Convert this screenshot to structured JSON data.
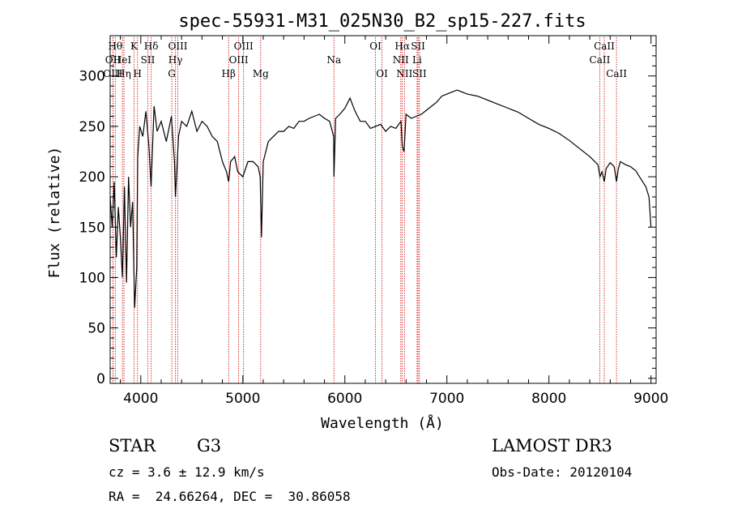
{
  "chart_data": {
    "type": "line",
    "title": "spec-55931-M31_025N30_B2_sp15-227.fits",
    "xlabel": "Wavelength (Å)",
    "ylabel": "Flux (relative)",
    "xlim": [
      3700,
      9050
    ],
    "ylim": [
      -5,
      340
    ],
    "xticks": [
      4000,
      5000,
      6000,
      7000,
      8000,
      9000
    ],
    "yticks": [
      0,
      50,
      100,
      150,
      200,
      250,
      300
    ],
    "series": [
      {
        "x": [
          3700,
          3720,
          3740,
          3760,
          3780,
          3800,
          3820,
          3840,
          3860,
          3880,
          3900,
          3920,
          3940,
          3960,
          3970,
          3990,
          4020,
          4050,
          4080,
          4101,
          4130,
          4160,
          4200,
          4250,
          4300,
          4330,
          4340,
          4370,
          4400,
          4450,
          4500,
          4550,
          4600,
          4650,
          4700,
          4750,
          4800,
          4840,
          4861,
          4880,
          4920,
          4950,
          5000,
          5050,
          5100,
          5150,
          5170,
          5183,
          5200,
          5250,
          5300,
          5350,
          5400,
          5450,
          5500,
          5550,
          5600,
          5650,
          5700,
          5750,
          5800,
          5850,
          5890,
          5893,
          5910,
          5950,
          6000,
          6050,
          6100,
          6150,
          6200,
          6250,
          6300,
          6350,
          6400,
          6450,
          6500,
          6550,
          6563,
          6580,
          6600,
          6650,
          6700,
          6750,
          6800,
          6850,
          6900,
          6950,
          7000,
          7050,
          7100,
          7150,
          7200,
          7300,
          7400,
          7500,
          7600,
          7700,
          7800,
          7900,
          8000,
          8100,
          8200,
          8300,
          8400,
          8480,
          8500,
          8520,
          8542,
          8560,
          8600,
          8640,
          8662,
          8680,
          8700,
          8750,
          8800,
          8850,
          8900,
          8950,
          8980,
          9000
        ],
        "y": [
          180,
          150,
          195,
          120,
          170,
          140,
          100,
          190,
          95,
          200,
          150,
          175,
          70,
          110,
          220,
          250,
          240,
          265,
          230,
          190,
          270,
          245,
          255,
          235,
          260,
          215,
          180,
          240,
          255,
          250,
          265,
          245,
          255,
          250,
          240,
          235,
          215,
          205,
          195,
          215,
          220,
          205,
          200,
          215,
          215,
          210,
          200,
          140,
          215,
          235,
          240,
          245,
          245,
          250,
          248,
          255,
          255,
          258,
          260,
          262,
          258,
          255,
          240,
          200,
          258,
          262,
          268,
          278,
          265,
          255,
          255,
          248,
          250,
          252,
          245,
          250,
          248,
          255,
          230,
          225,
          262,
          258,
          260,
          262,
          266,
          270,
          274,
          280,
          282,
          284,
          286,
          284,
          282,
          280,
          276,
          272,
          268,
          264,
          258,
          252,
          248,
          243,
          236,
          228,
          220,
          212,
          200,
          205,
          195,
          208,
          214,
          210,
          195,
          208,
          215,
          212,
          210,
          206,
          198,
          190,
          180,
          150
        ]
      }
    ],
    "lines": [
      {
        "name": "OII",
        "wave": 3727,
        "tier": 2
      },
      {
        "name": "OIII",
        "wave": 3727,
        "tier": 3
      },
      {
        "name": "Hθ",
        "wave": 3750,
        "tier": 1
      },
      {
        "name": "Hη",
        "wave": 3835,
        "tier": 3
      },
      {
        "name": "HeI",
        "wave": 3820,
        "tier": 2
      },
      {
        "name": "K",
        "wave": 3934,
        "tier": 1
      },
      {
        "name": "SII",
        "wave": 4069,
        "tier": 2
      },
      {
        "name": "H",
        "wave": 3968,
        "tier": 3
      },
      {
        "name": "Hδ",
        "wave": 4102,
        "tier": 1
      },
      {
        "name": "OIII",
        "wave": 4363,
        "tier": 1
      },
      {
        "name": "Hγ",
        "wave": 4340,
        "tier": 2
      },
      {
        "name": "G",
        "wave": 4304,
        "tier": 3
      },
      {
        "name": "Hβ",
        "wave": 4861,
        "tier": 3
      },
      {
        "name": "OIII",
        "wave": 5007,
        "tier": 1
      },
      {
        "name": "OIII",
        "wave": 4959,
        "tier": 2
      },
      {
        "name": "Mg",
        "wave": 5175,
        "tier": 3
      },
      {
        "name": "Na",
        "wave": 5893,
        "tier": 2
      },
      {
        "name": "OI",
        "wave": 6300,
        "tier": 1
      },
      {
        "name": "OI",
        "wave": 6364,
        "tier": 3
      },
      {
        "name": "Hα",
        "wave": 6563,
        "tier": 1
      },
      {
        "name": "NII",
        "wave": 6548,
        "tier": 2
      },
      {
        "name": "NII",
        "wave": 6584,
        "tier": 3
      },
      {
        "name": "SII",
        "wave": 6717,
        "tier": 1
      },
      {
        "name": "Li",
        "wave": 6708,
        "tier": 2
      },
      {
        "name": "SII",
        "wave": 6731,
        "tier": 3
      },
      {
        "name": "CaII",
        "wave": 8542,
        "tier": 1
      },
      {
        "name": "CaII",
        "wave": 8498,
        "tier": 2
      },
      {
        "name": "CaII",
        "wave": 8662,
        "tier": 3
      }
    ],
    "grid": false,
    "line_color": "#000000",
    "marker_color": "#cc0000"
  },
  "info": {
    "class_label": "STAR",
    "subclass_label": "G3",
    "survey_label": "LAMOST DR3",
    "cz_line": "cz = 3.6 ± 12.9 km/s",
    "obs_date_line": "Obs-Date: 20120104",
    "radec_line": "RA =  24.66264, DEC =  30.86058"
  }
}
